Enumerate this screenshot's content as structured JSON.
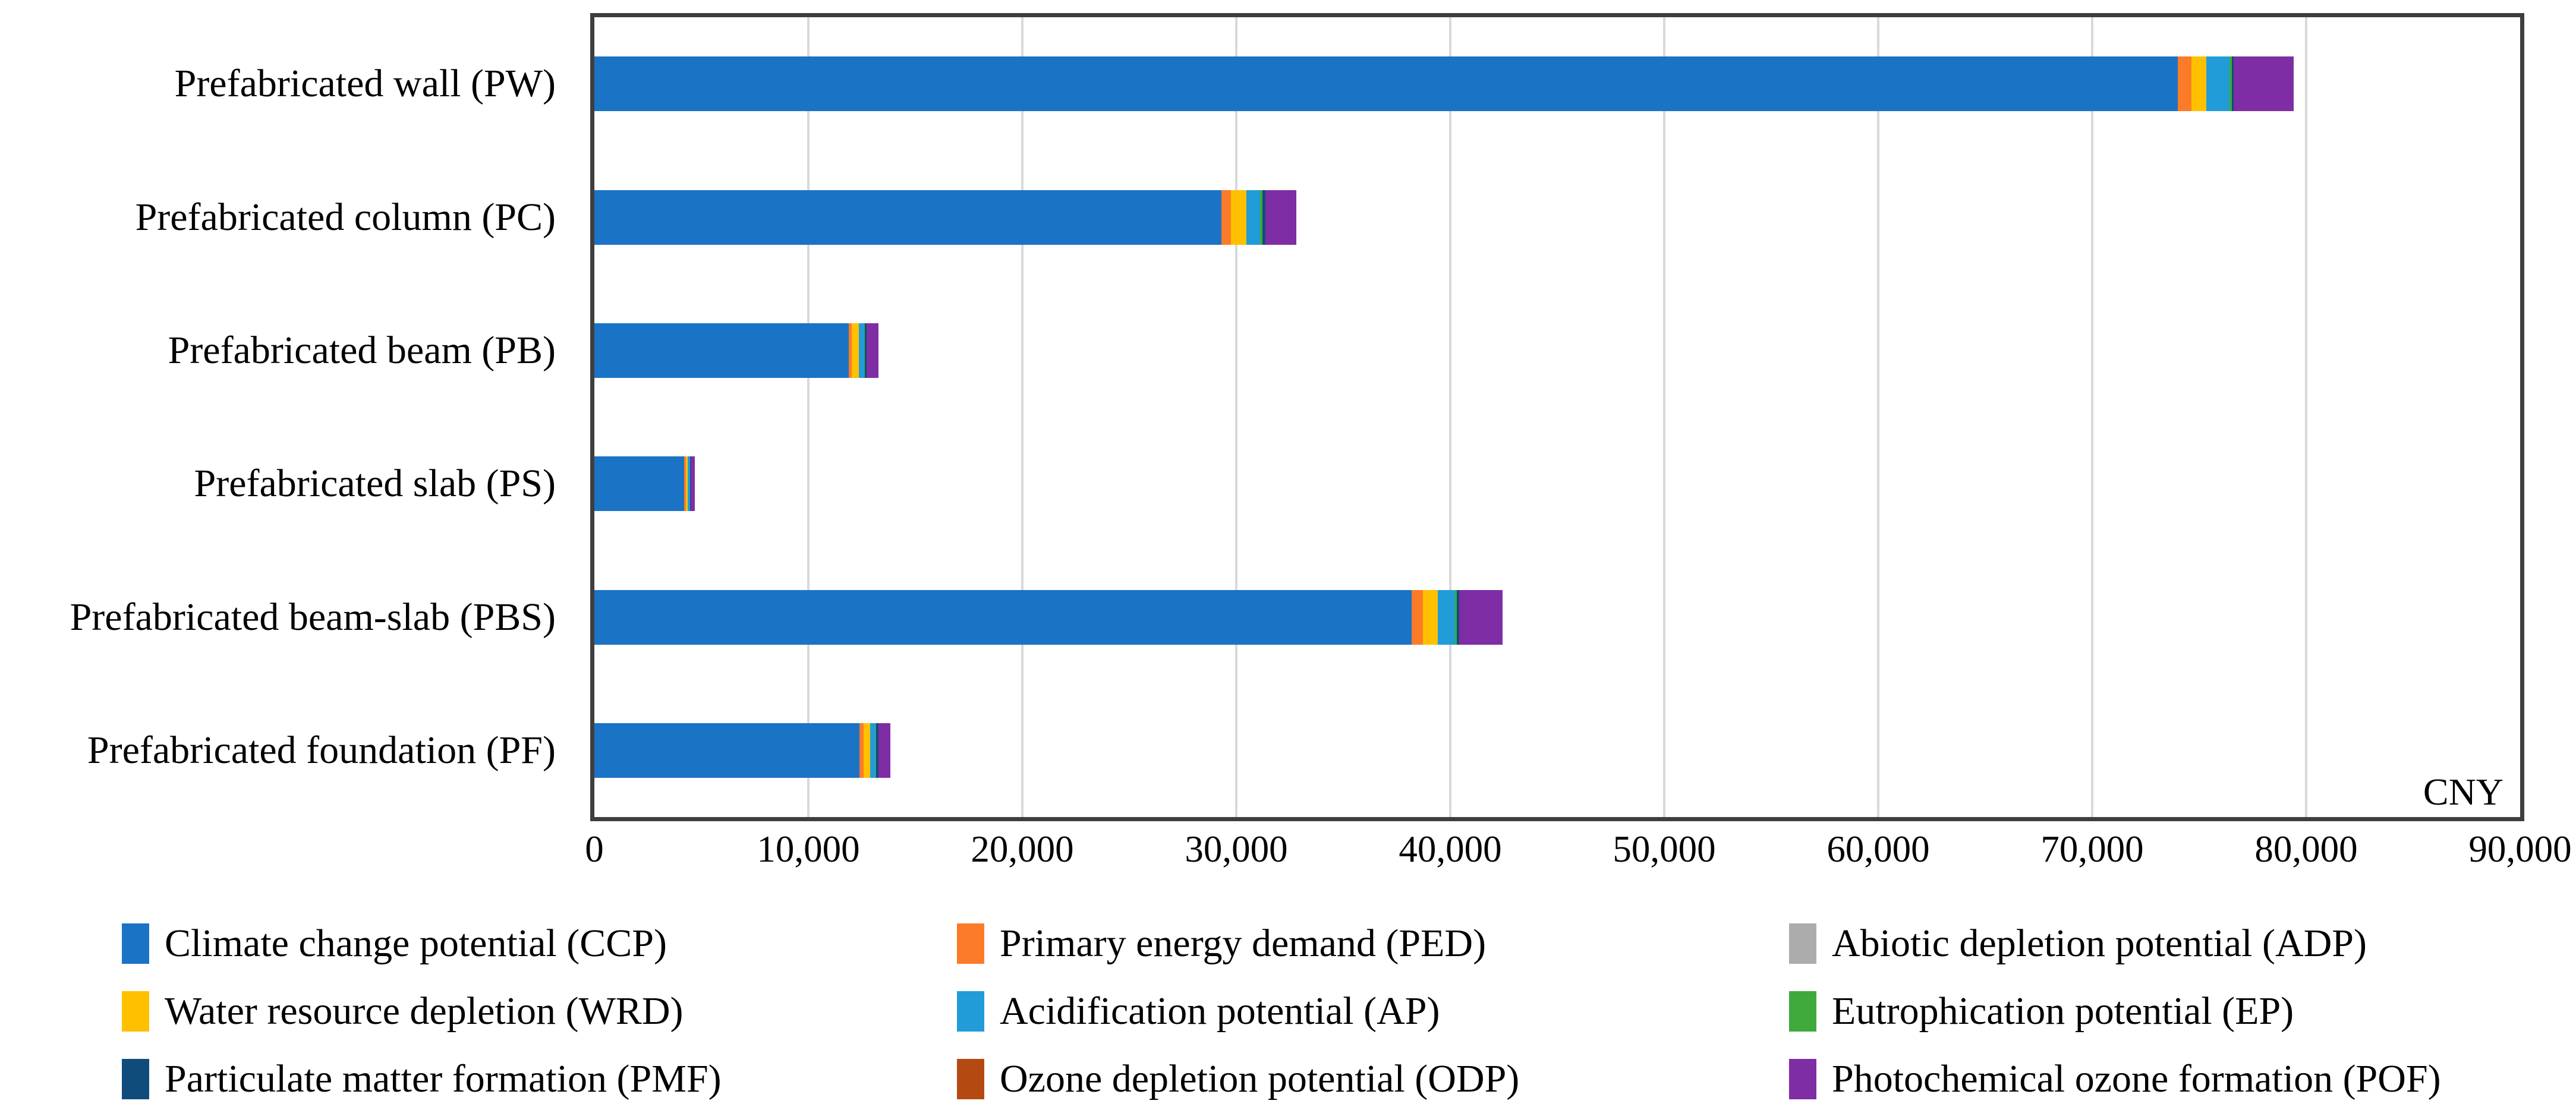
{
  "figure": {
    "unit_label": "CNY"
  },
  "chart_data": {
    "type": "bar",
    "orientation": "horizontal-stacked",
    "title": "",
    "xlabel": "CNY",
    "ylabel": "",
    "grid": true,
    "legend_position": "bottom (3 columns x 3 rows)",
    "x_axis": {
      "min": 0,
      "max": 90000,
      "tick_interval": 10000,
      "tick_labels": [
        "0",
        "10,000",
        "20,000",
        "30,000",
        "40,000",
        "50,000",
        "60,000",
        "70,000",
        "80,000",
        "90,000"
      ]
    },
    "categories": [
      "Prefabricated wall (PW)",
      "Prefabricated column (PC)",
      "Prefabricated beam (PB)",
      "Prefabricated slab (PS)",
      "Prefabricated beam-slab (PBS)",
      "Prefabricated foundation (PF)"
    ],
    "series": [
      {
        "name": "Climate change potential (CCP)",
        "abbr": "CCP",
        "color": "#1b73c6",
        "values": [
          74000,
          29300,
          11900,
          4190,
          38200,
          12400
        ]
      },
      {
        "name": "Primary energy demand (PED)",
        "abbr": "PED",
        "color": "#fc7b28",
        "values": [
          650,
          450,
          140,
          100,
          530,
          185
        ]
      },
      {
        "name": "Abiotic depletion potential (ADP)",
        "abbr": "ADP",
        "color": "#acacac",
        "values": [
          0,
          0,
          0,
          0,
          0,
          0
        ]
      },
      {
        "name": "Water resource depletion (WRD)",
        "abbr": "WRD",
        "color": "#ffc000",
        "values": [
          670,
          720,
          320,
          85,
          695,
          315
        ]
      },
      {
        "name": "Acidification potential (AP)",
        "abbr": "AP",
        "color": "#219cd9",
        "values": [
          1100,
          650,
          260,
          95,
          805,
          250
        ]
      },
      {
        "name": "Eutrophication potential (EP)",
        "abbr": "EP",
        "color": "#3fa93c",
        "values": [
          100,
          90,
          30,
          15,
          75,
          20
        ]
      },
      {
        "name": "Particulate matter formation (PMF)",
        "abbr": "PMF",
        "color": "#0f4c7c",
        "values": [
          95,
          150,
          75,
          25,
          100,
          100
        ]
      },
      {
        "name": "Ozone depletion potential (ODP)",
        "abbr": "ODP",
        "color": "#b44a12",
        "values": [
          0,
          0,
          0,
          0,
          0,
          0
        ]
      },
      {
        "name": "Photochemical ozone formation (POF)",
        "abbr": "POF",
        "color": "#7f2da5",
        "values": [
          2800,
          1450,
          565,
          195,
          2030,
          575
        ]
      }
    ],
    "approx_totals": [
      79415,
      32810,
      13290,
      4705,
      42435,
      13845
    ]
  }
}
